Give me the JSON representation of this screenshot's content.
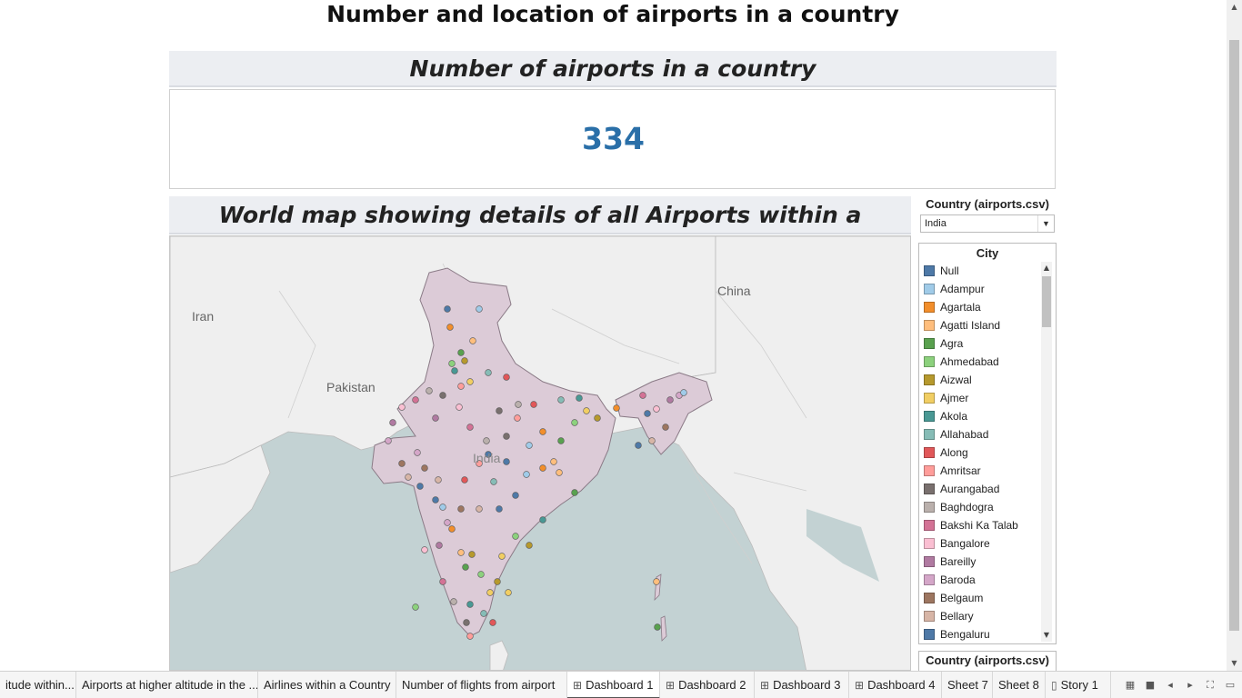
{
  "dashboard": {
    "title": "Number and location of airports in a country"
  },
  "kpi": {
    "header": "Number of airports in a country",
    "value": "334"
  },
  "map": {
    "header": "World map showing details of all Airports within a Country",
    "labels": {
      "iran": "Iran",
      "pakistan": "Pakistan",
      "china": "China",
      "india": "India"
    }
  },
  "filter": {
    "title": "Country (airports.csv)",
    "selected": "India",
    "icons": {
      "dropdown": "chevron-down-icon"
    }
  },
  "legend": {
    "title": "City",
    "items": [
      {
        "label": "Null",
        "color": "#4e79a7"
      },
      {
        "label": "Adampur",
        "color": "#a0cbe8"
      },
      {
        "label": "Agartala",
        "color": "#f28e2b"
      },
      {
        "label": "Agatti Island",
        "color": "#ffbe7d"
      },
      {
        "label": "Agra",
        "color": "#59a14f"
      },
      {
        "label": "Ahmedabad",
        "color": "#8cd17d"
      },
      {
        "label": "Aizwal",
        "color": "#b6992d"
      },
      {
        "label": "Ajmer",
        "color": "#f1ce63"
      },
      {
        "label": "Akola",
        "color": "#499894"
      },
      {
        "label": "Allahabad",
        "color": "#86bcb6"
      },
      {
        "label": "Along",
        "color": "#e15759"
      },
      {
        "label": "Amritsar",
        "color": "#ff9d9a"
      },
      {
        "label": "Aurangabad",
        "color": "#79706e"
      },
      {
        "label": "Baghdogra",
        "color": "#bab0ac"
      },
      {
        "label": "Bakshi Ka Talab",
        "color": "#d37295"
      },
      {
        "label": "Bangalore",
        "color": "#fabfd2"
      },
      {
        "label": "Bareilly",
        "color": "#b07aa1"
      },
      {
        "label": "Baroda",
        "color": "#d4a6c8"
      },
      {
        "label": "Belgaum",
        "color": "#9d7660"
      },
      {
        "label": "Bellary",
        "color": "#d7b5a6"
      },
      {
        "label": "Bengaluru",
        "color": "#4e79a7"
      }
    ]
  },
  "filter2": {
    "title": "Country (airports.csv)"
  },
  "tabs": [
    {
      "label": "itude within...",
      "icon": "",
      "active": false
    },
    {
      "label": "Airports at higher altitude in the ...",
      "icon": "",
      "active": false
    },
    {
      "label": "Airlines within a Country",
      "icon": "",
      "active": false
    },
    {
      "label": "Number of flights from airport",
      "icon": "",
      "active": false
    },
    {
      "label": "Dashboard 1",
      "icon": "dashboard-icon",
      "active": true
    },
    {
      "label": "Dashboard 2",
      "icon": "dashboard-icon",
      "active": false
    },
    {
      "label": "Dashboard 3",
      "icon": "dashboard-icon",
      "active": false
    },
    {
      "label": "Dashboard 4",
      "icon": "dashboard-icon",
      "active": false
    },
    {
      "label": "Sheet 7",
      "icon": "",
      "active": false
    },
    {
      "label": "Sheet 8",
      "icon": "",
      "active": false
    },
    {
      "label": "Story 1",
      "icon": "story-icon",
      "active": false
    }
  ],
  "colors": {
    "kpi_value": "#2a6fa8",
    "water": "#c3d2d3",
    "land": "#efefef",
    "india_fill": "#dccbd7"
  }
}
